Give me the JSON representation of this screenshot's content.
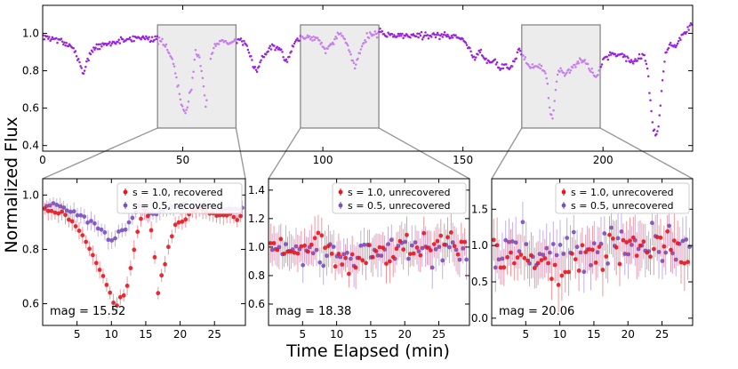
{
  "figure": {
    "ylabel": "Normalized Flux",
    "xlabel": "Time Elapsed (min)"
  },
  "colors": {
    "light_curve": "#9a1fe0",
    "highlight": "#c77ef0",
    "s10": "#e8151f",
    "s05": "#7a4fc0",
    "box_fill": "#ececec",
    "box_edge": "#888888"
  },
  "chart_data": [
    {
      "id": "top",
      "type": "scatter",
      "xlim": [
        0,
        232
      ],
      "ylim": [
        0.37,
        1.15
      ],
      "xticks": [
        0,
        50,
        100,
        150,
        200
      ],
      "yticks": [
        0.4,
        0.6,
        0.8,
        1.0
      ],
      "xtick_labels": [
        "0",
        "50",
        "100",
        "150",
        "200"
      ],
      "ytick_labels": [
        "0.4",
        "0.6",
        "0.8",
        "1.0"
      ],
      "highlight_windows": [
        [
          41,
          69
        ],
        [
          92,
          120
        ],
        [
          171,
          199
        ]
      ],
      "trend_knots": [
        [
          0,
          0.98
        ],
        [
          5,
          0.97
        ],
        [
          10,
          0.93
        ],
        [
          13,
          0.86
        ],
        [
          14.5,
          0.78
        ],
        [
          16,
          0.86
        ],
        [
          18,
          0.92
        ],
        [
          25,
          0.95
        ],
        [
          30,
          0.97
        ],
        [
          37,
          0.98
        ],
        [
          42,
          0.96
        ],
        [
          45,
          0.91
        ],
        [
          47,
          0.82
        ],
        [
          49.5,
          0.62
        ],
        [
          51,
          0.57
        ],
        [
          53,
          0.7
        ],
        [
          54.5,
          0.9
        ],
        [
          56,
          0.87
        ],
        [
          57.5,
          0.72
        ],
        [
          58.3,
          0.6
        ],
        [
          59.5,
          0.85
        ],
        [
          61,
          0.93
        ],
        [
          64,
          0.96
        ],
        [
          67,
          0.95
        ],
        [
          70,
          0.97
        ],
        [
          73,
          0.92
        ],
        [
          75,
          0.84
        ],
        [
          76.5,
          0.8
        ],
        [
          78,
          0.86
        ],
        [
          80,
          0.9
        ],
        [
          82,
          0.94
        ],
        [
          85,
          0.92
        ],
        [
          86.5,
          0.85
        ],
        [
          88,
          0.87
        ],
        [
          90,
          0.96
        ],
        [
          93,
          0.98
        ],
        [
          96,
          0.98
        ],
        [
          99,
          0.97
        ],
        [
          101,
          0.9
        ],
        [
          103,
          0.95
        ],
        [
          106,
          1.0
        ],
        [
          108,
          0.96
        ],
        [
          110,
          0.88
        ],
        [
          111.5,
          0.82
        ],
        [
          113,
          0.9
        ],
        [
          116,
          0.99
        ],
        [
          120,
          1.0
        ],
        [
          125,
          0.99
        ],
        [
          135,
          0.99
        ],
        [
          145,
          0.99
        ],
        [
          150,
          0.97
        ],
        [
          152,
          0.92
        ],
        [
          154,
          0.87
        ],
        [
          156,
          0.91
        ],
        [
          158,
          0.86
        ],
        [
          161,
          0.85
        ],
        [
          163,
          0.82
        ],
        [
          165,
          0.83
        ],
        [
          167,
          0.8
        ],
        [
          168.5,
          0.86
        ],
        [
          170,
          0.92
        ],
        [
          172,
          0.86
        ],
        [
          174,
          0.82
        ],
        [
          176,
          0.83
        ],
        [
          178,
          0.82
        ],
        [
          180,
          0.76
        ],
        [
          181,
          0.58
        ],
        [
          182,
          0.55
        ],
        [
          183,
          0.68
        ],
        [
          184,
          0.8
        ],
        [
          187,
          0.79
        ],
        [
          190,
          0.83
        ],
        [
          193,
          0.86
        ],
        [
          195,
          0.82
        ],
        [
          197,
          0.76
        ],
        [
          198,
          0.78
        ],
        [
          200,
          0.86
        ],
        [
          203,
          0.89
        ],
        [
          207,
          0.89
        ],
        [
          210,
          0.85
        ],
        [
          212,
          0.86
        ],
        [
          214,
          0.88
        ],
        [
          215,
          0.87
        ],
        [
          216,
          0.8
        ],
        [
          217,
          0.62
        ],
        [
          218,
          0.48
        ],
        [
          219,
          0.44
        ],
        [
          220,
          0.52
        ],
        [
          221,
          0.72
        ],
        [
          222.5,
          0.9
        ],
        [
          224,
          0.95
        ],
        [
          226,
          0.93
        ],
        [
          228,
          0.98
        ],
        [
          230,
          1.02
        ],
        [
          232,
          1.06
        ]
      ]
    },
    {
      "id": "panel1",
      "type": "scatter",
      "xlim": [
        0,
        29.5
      ],
      "ylim": [
        0.52,
        1.06
      ],
      "xticks": [
        5,
        10,
        15,
        20,
        25
      ],
      "yticks": [
        0.6,
        0.8,
        1.0
      ],
      "xtick_labels": [
        "5",
        "10",
        "15",
        "20",
        "25"
      ],
      "ytick_labels": [
        "0.6",
        "0.8",
        "1.0"
      ],
      "annotation": "mag = 15.52",
      "legend": [
        "s = 1.0, recovered",
        "s = 0.5, recovered"
      ],
      "error": 0.03,
      "s10_knots": [
        [
          0,
          0.95
        ],
        [
          3,
          0.93
        ],
        [
          5,
          0.88
        ],
        [
          7,
          0.8
        ],
        [
          9,
          0.68
        ],
        [
          10.5,
          0.6
        ],
        [
          12,
          0.63
        ],
        [
          13,
          0.75
        ],
        [
          14,
          0.9
        ],
        [
          15,
          0.95
        ],
        [
          16,
          0.85
        ],
        [
          16.8,
          0.64
        ],
        [
          17.5,
          0.72
        ],
        [
          19,
          0.88
        ],
        [
          21,
          0.92
        ],
        [
          23,
          0.95
        ],
        [
          26,
          0.93
        ],
        [
          29,
          0.92
        ]
      ],
      "s05_knots": [
        [
          0,
          0.97
        ],
        [
          3,
          0.95
        ],
        [
          6,
          0.92
        ],
        [
          8,
          0.88
        ],
        [
          10,
          0.83
        ],
        [
          12,
          0.88
        ],
        [
          14,
          0.96
        ],
        [
          16,
          0.93
        ],
        [
          18,
          0.95
        ],
        [
          22,
          0.96
        ],
        [
          26,
          0.95
        ],
        [
          29,
          0.95
        ]
      ]
    },
    {
      "id": "panel2",
      "type": "scatter",
      "xlim": [
        0,
        29.5
      ],
      "ylim": [
        0.45,
        1.48
      ],
      "xticks": [
        5,
        10,
        15,
        20,
        25
      ],
      "yticks": [
        0.6,
        0.8,
        1.0,
        1.2,
        1.4
      ],
      "xtick_labels": [
        "5",
        "10",
        "15",
        "20",
        "25"
      ],
      "ytick_labels": [
        "0.6",
        "0.8",
        "1.0",
        "1.2",
        "1.4"
      ],
      "annotation": "mag = 18.38",
      "legend": [
        "s = 1.0, unrecovered",
        "s = 0.5, unrecovered"
      ],
      "error": 0.13,
      "s10_knots": [
        [
          0,
          0.98
        ],
        [
          5,
          0.98
        ],
        [
          8,
          1.05
        ],
        [
          10,
          0.9
        ],
        [
          12,
          0.88
        ],
        [
          15,
          0.95
        ],
        [
          18,
          1.0
        ],
        [
          22,
          1.0
        ],
        [
          25,
          1.0
        ],
        [
          29,
          1.0
        ]
      ],
      "s05_knots": [
        [
          0,
          0.98
        ],
        [
          5,
          0.97
        ],
        [
          10,
          0.95
        ],
        [
          15,
          0.97
        ],
        [
          20,
          0.99
        ],
        [
          25,
          0.98
        ],
        [
          29,
          0.98
        ]
      ]
    },
    {
      "id": "panel3",
      "type": "scatter",
      "xlim": [
        0,
        29.5
      ],
      "ylim": [
        -0.1,
        1.92
      ],
      "xticks": [
        5,
        10,
        15,
        20,
        25
      ],
      "yticks": [
        0.0,
        0.5,
        1.0,
        1.5
      ],
      "xtick_labels": [
        "5",
        "10",
        "15",
        "20",
        "25"
      ],
      "ytick_labels": [
        "0.0",
        "0.5",
        "1.0",
        "1.5"
      ],
      "annotation": "mag = 20.06",
      "legend": [
        "s = 1.0, unrecovered",
        "s = 0.5, unrecovered"
      ],
      "error": 0.32,
      "s10_knots": [
        [
          0,
          0.9
        ],
        [
          5,
          0.92
        ],
        [
          8,
          0.8
        ],
        [
          10,
          0.55
        ],
        [
          12,
          0.7
        ],
        [
          15,
          0.95
        ],
        [
          20,
          0.98
        ],
        [
          25,
          1.0
        ],
        [
          29,
          0.85
        ]
      ],
      "s05_knots": [
        [
          0,
          0.95
        ],
        [
          5,
          0.95
        ],
        [
          10,
          0.9
        ],
        [
          15,
          0.97
        ],
        [
          20,
          0.98
        ],
        [
          25,
          0.97
        ],
        [
          29,
          0.95
        ]
      ]
    }
  ]
}
